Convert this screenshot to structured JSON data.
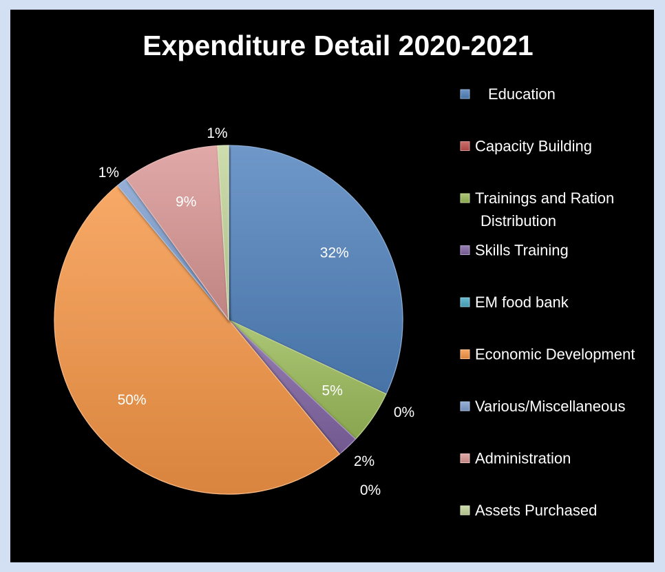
{
  "chart_data": {
    "type": "pie",
    "title": "Expenditure Detail 2020-2021",
    "legend_position": "right",
    "slices": [
      {
        "name": "Education",
        "value": 32,
        "label": "32%",
        "color": "#4f81bd"
      },
      {
        "name": "Capacity Building",
        "value": 0,
        "label": "0%",
        "color": "#c0504d"
      },
      {
        "name": "Trainings and Ration Distribution",
        "value": 5,
        "label": "5%",
        "color": "#9bbb59"
      },
      {
        "name": "Skills Training",
        "value": 2,
        "label": "2%",
        "color": "#8064a2"
      },
      {
        "name": "EM food bank",
        "value": 0,
        "label": "0%",
        "color": "#4bacc6"
      },
      {
        "name": "Economic Development",
        "value": 50,
        "label": "50%",
        "color": "#f79646"
      },
      {
        "name": "Various/Miscellaneous",
        "value": 1,
        "label": "1%",
        "color": "#7f9fcf"
      },
      {
        "name": "Administration",
        "value": 9,
        "label": "9%",
        "color": "#d99694"
      },
      {
        "name": "Assets Purchased",
        "value": 1,
        "label": "1%",
        "color": "#c3d69b"
      }
    ],
    "legend": [
      [
        "Education"
      ],
      [
        "Capacity Building"
      ],
      [
        "Trainings and Ration",
        "Distribution"
      ],
      [
        "Skills Training"
      ],
      [
        "EM food bank"
      ],
      [
        "Economic Development"
      ],
      [
        "Various/Miscellaneous"
      ],
      [
        "Administration"
      ],
      [
        "Assets Purchased"
      ]
    ]
  }
}
